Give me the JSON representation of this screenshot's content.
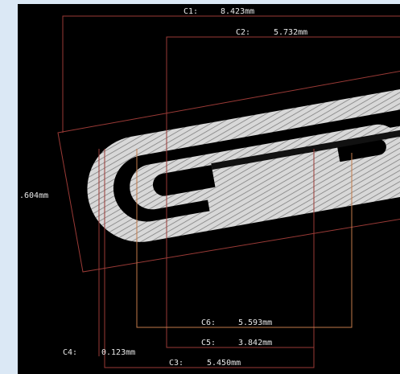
{
  "measurements": [
    {
      "label": "C1:",
      "value": "8.423mm"
    },
    {
      "label": "C2:",
      "value": "5.732mm"
    },
    {
      "label": "C6:",
      "value": "5.593mm"
    },
    {
      "label": "C5:",
      "value": "3.842mm"
    },
    {
      "label": "C4:",
      "value": "0.123mm"
    },
    {
      "label": "C3:",
      "value": "5.450mm"
    }
  ],
  "side_label": ".604mm"
}
